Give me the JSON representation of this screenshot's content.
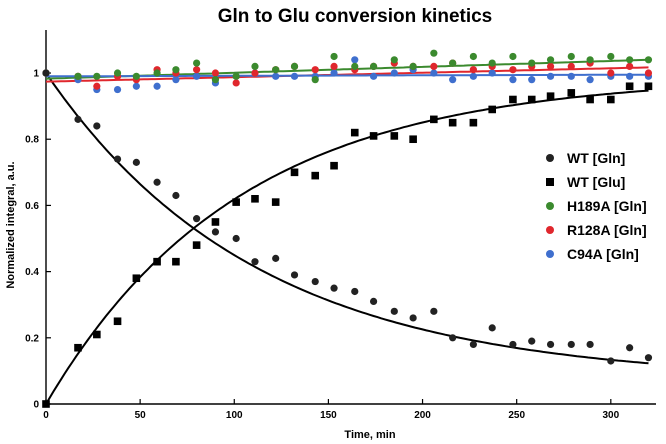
{
  "chart_data": {
    "type": "scatter",
    "title": "Gln to Glu conversion kinetics",
    "xlabel": "Time, min",
    "ylabel": "Normalized  integral,  a.u.",
    "xlim": [
      0,
      324
    ],
    "ylim": [
      0,
      1.13
    ],
    "xticks": [
      0,
      50,
      100,
      150,
      200,
      250,
      300
    ],
    "yticks": [
      0,
      0.2,
      0.4,
      0.6,
      0.8,
      1
    ],
    "ytick_labels": [
      "0",
      "0.2",
      "0.4",
      "0.6",
      "0.8",
      "1"
    ],
    "legend_position": "right",
    "series": [
      {
        "name": "WT [Gln]",
        "marker": "circle",
        "color": "#222222",
        "x": [
          0,
          17,
          27,
          38,
          48,
          59,
          69,
          80,
          90,
          101,
          111,
          122,
          132,
          143,
          153,
          164,
          174,
          185,
          195,
          206,
          216,
          227,
          237,
          248,
          258,
          268,
          279,
          289,
          300,
          310,
          320
        ],
        "y": [
          1.0,
          0.86,
          0.84,
          0.74,
          0.73,
          0.67,
          0.63,
          0.56,
          0.52,
          0.5,
          0.43,
          0.44,
          0.39,
          0.37,
          0.35,
          0.34,
          0.31,
          0.28,
          0.26,
          0.28,
          0.2,
          0.18,
          0.23,
          0.18,
          0.19,
          0.18,
          0.18,
          0.18,
          0.13,
          0.17,
          0.14
        ]
      },
      {
        "name": "WT [Glu]",
        "marker": "square",
        "color": "#000000",
        "x": [
          0,
          17,
          27,
          38,
          48,
          59,
          69,
          80,
          90,
          101,
          111,
          122,
          132,
          143,
          153,
          164,
          174,
          185,
          195,
          206,
          216,
          227,
          237,
          248,
          258,
          268,
          279,
          289,
          300,
          310,
          320
        ],
        "y": [
          0.0,
          0.17,
          0.21,
          0.25,
          0.38,
          0.43,
          0.43,
          0.48,
          0.55,
          0.61,
          0.62,
          0.61,
          0.7,
          0.69,
          0.72,
          0.82,
          0.81,
          0.81,
          0.8,
          0.86,
          0.85,
          0.85,
          0.89,
          0.92,
          0.92,
          0.93,
          0.94,
          0.92,
          0.92,
          0.96,
          0.96
        ]
      },
      {
        "name": "H189A [Gln]",
        "marker": "circle",
        "color": "#3b8a2e",
        "x": [
          0,
          17,
          27,
          38,
          48,
          59,
          69,
          80,
          90,
          101,
          111,
          122,
          132,
          143,
          153,
          164,
          174,
          185,
          195,
          206,
          216,
          227,
          237,
          248,
          258,
          268,
          279,
          289,
          300,
          310,
          320
        ],
        "y": [
          1.0,
          0.99,
          0.99,
          1.0,
          0.99,
          1.0,
          1.01,
          1.03,
          0.98,
          0.99,
          1.02,
          1.01,
          1.02,
          0.98,
          1.05,
          1.02,
          1.02,
          1.04,
          1.02,
          1.06,
          1.03,
          1.05,
          1.03,
          1.05,
          1.03,
          1.04,
          1.05,
          1.04,
          1.05,
          1.04,
          1.04
        ]
      },
      {
        "name": "R128A [Gln]",
        "marker": "circle",
        "color": "#e0272d",
        "x": [
          0,
          17,
          27,
          38,
          48,
          59,
          69,
          80,
          90,
          101,
          111,
          122,
          132,
          143,
          153,
          164,
          174,
          185,
          195,
          206,
          216,
          227,
          237,
          248,
          258,
          268,
          279,
          289,
          300,
          310,
          320
        ],
        "y": [
          1.0,
          0.99,
          0.96,
          0.99,
          0.98,
          1.01,
          1.0,
          1.01,
          1.0,
          0.97,
          1.0,
          1.01,
          1.02,
          1.01,
          1.02,
          1.01,
          1.02,
          1.03,
          1.02,
          1.02,
          1.03,
          1.01,
          1.02,
          1.01,
          1.02,
          1.02,
          1.02,
          1.03,
          1.0,
          1.02,
          1.0
        ]
      },
      {
        "name": "C94A [Gln]",
        "marker": "circle",
        "color": "#3f6fce",
        "x": [
          0,
          17,
          27,
          38,
          48,
          59,
          69,
          80,
          90,
          101,
          111,
          122,
          132,
          143,
          153,
          164,
          174,
          185,
          195,
          206,
          216,
          227,
          237,
          248,
          258,
          268,
          279,
          289,
          300,
          310,
          320
        ],
        "y": [
          1.0,
          0.98,
          0.95,
          0.95,
          0.96,
          0.96,
          0.98,
          0.99,
          0.97,
          0.99,
          1.0,
          0.99,
          0.99,
          0.99,
          1.0,
          1.04,
          0.99,
          1.0,
          1.01,
          1.0,
          0.98,
          0.99,
          1.0,
          0.98,
          0.98,
          0.99,
          0.99,
          0.98,
          0.99,
          0.99,
          0.99
        ]
      }
    ],
    "fits": [
      {
        "name": "WT [Gln] fit",
        "color": "#000000",
        "model": "exp_decay",
        "a": 0.93,
        "k": 0.00895,
        "c": 0.07
      },
      {
        "name": "WT [Glu] fit",
        "color": "#000000",
        "model": "exp_rise",
        "a": 0.99,
        "k": 0.0098,
        "c": 0
      },
      {
        "name": "H189A [Gln] fit",
        "color": "#3b8a2e",
        "model": "linear",
        "y0": 0.983,
        "y1": 1.04
      },
      {
        "name": "R128A [Gln] fit",
        "color": "#e0272d",
        "model": "linear",
        "y0": 0.974,
        "y1": 1.017
      },
      {
        "name": "C94A [Gln] fit",
        "color": "#3f6fce",
        "model": "linear",
        "y0": 0.99,
        "y1": 0.995
      }
    ]
  }
}
